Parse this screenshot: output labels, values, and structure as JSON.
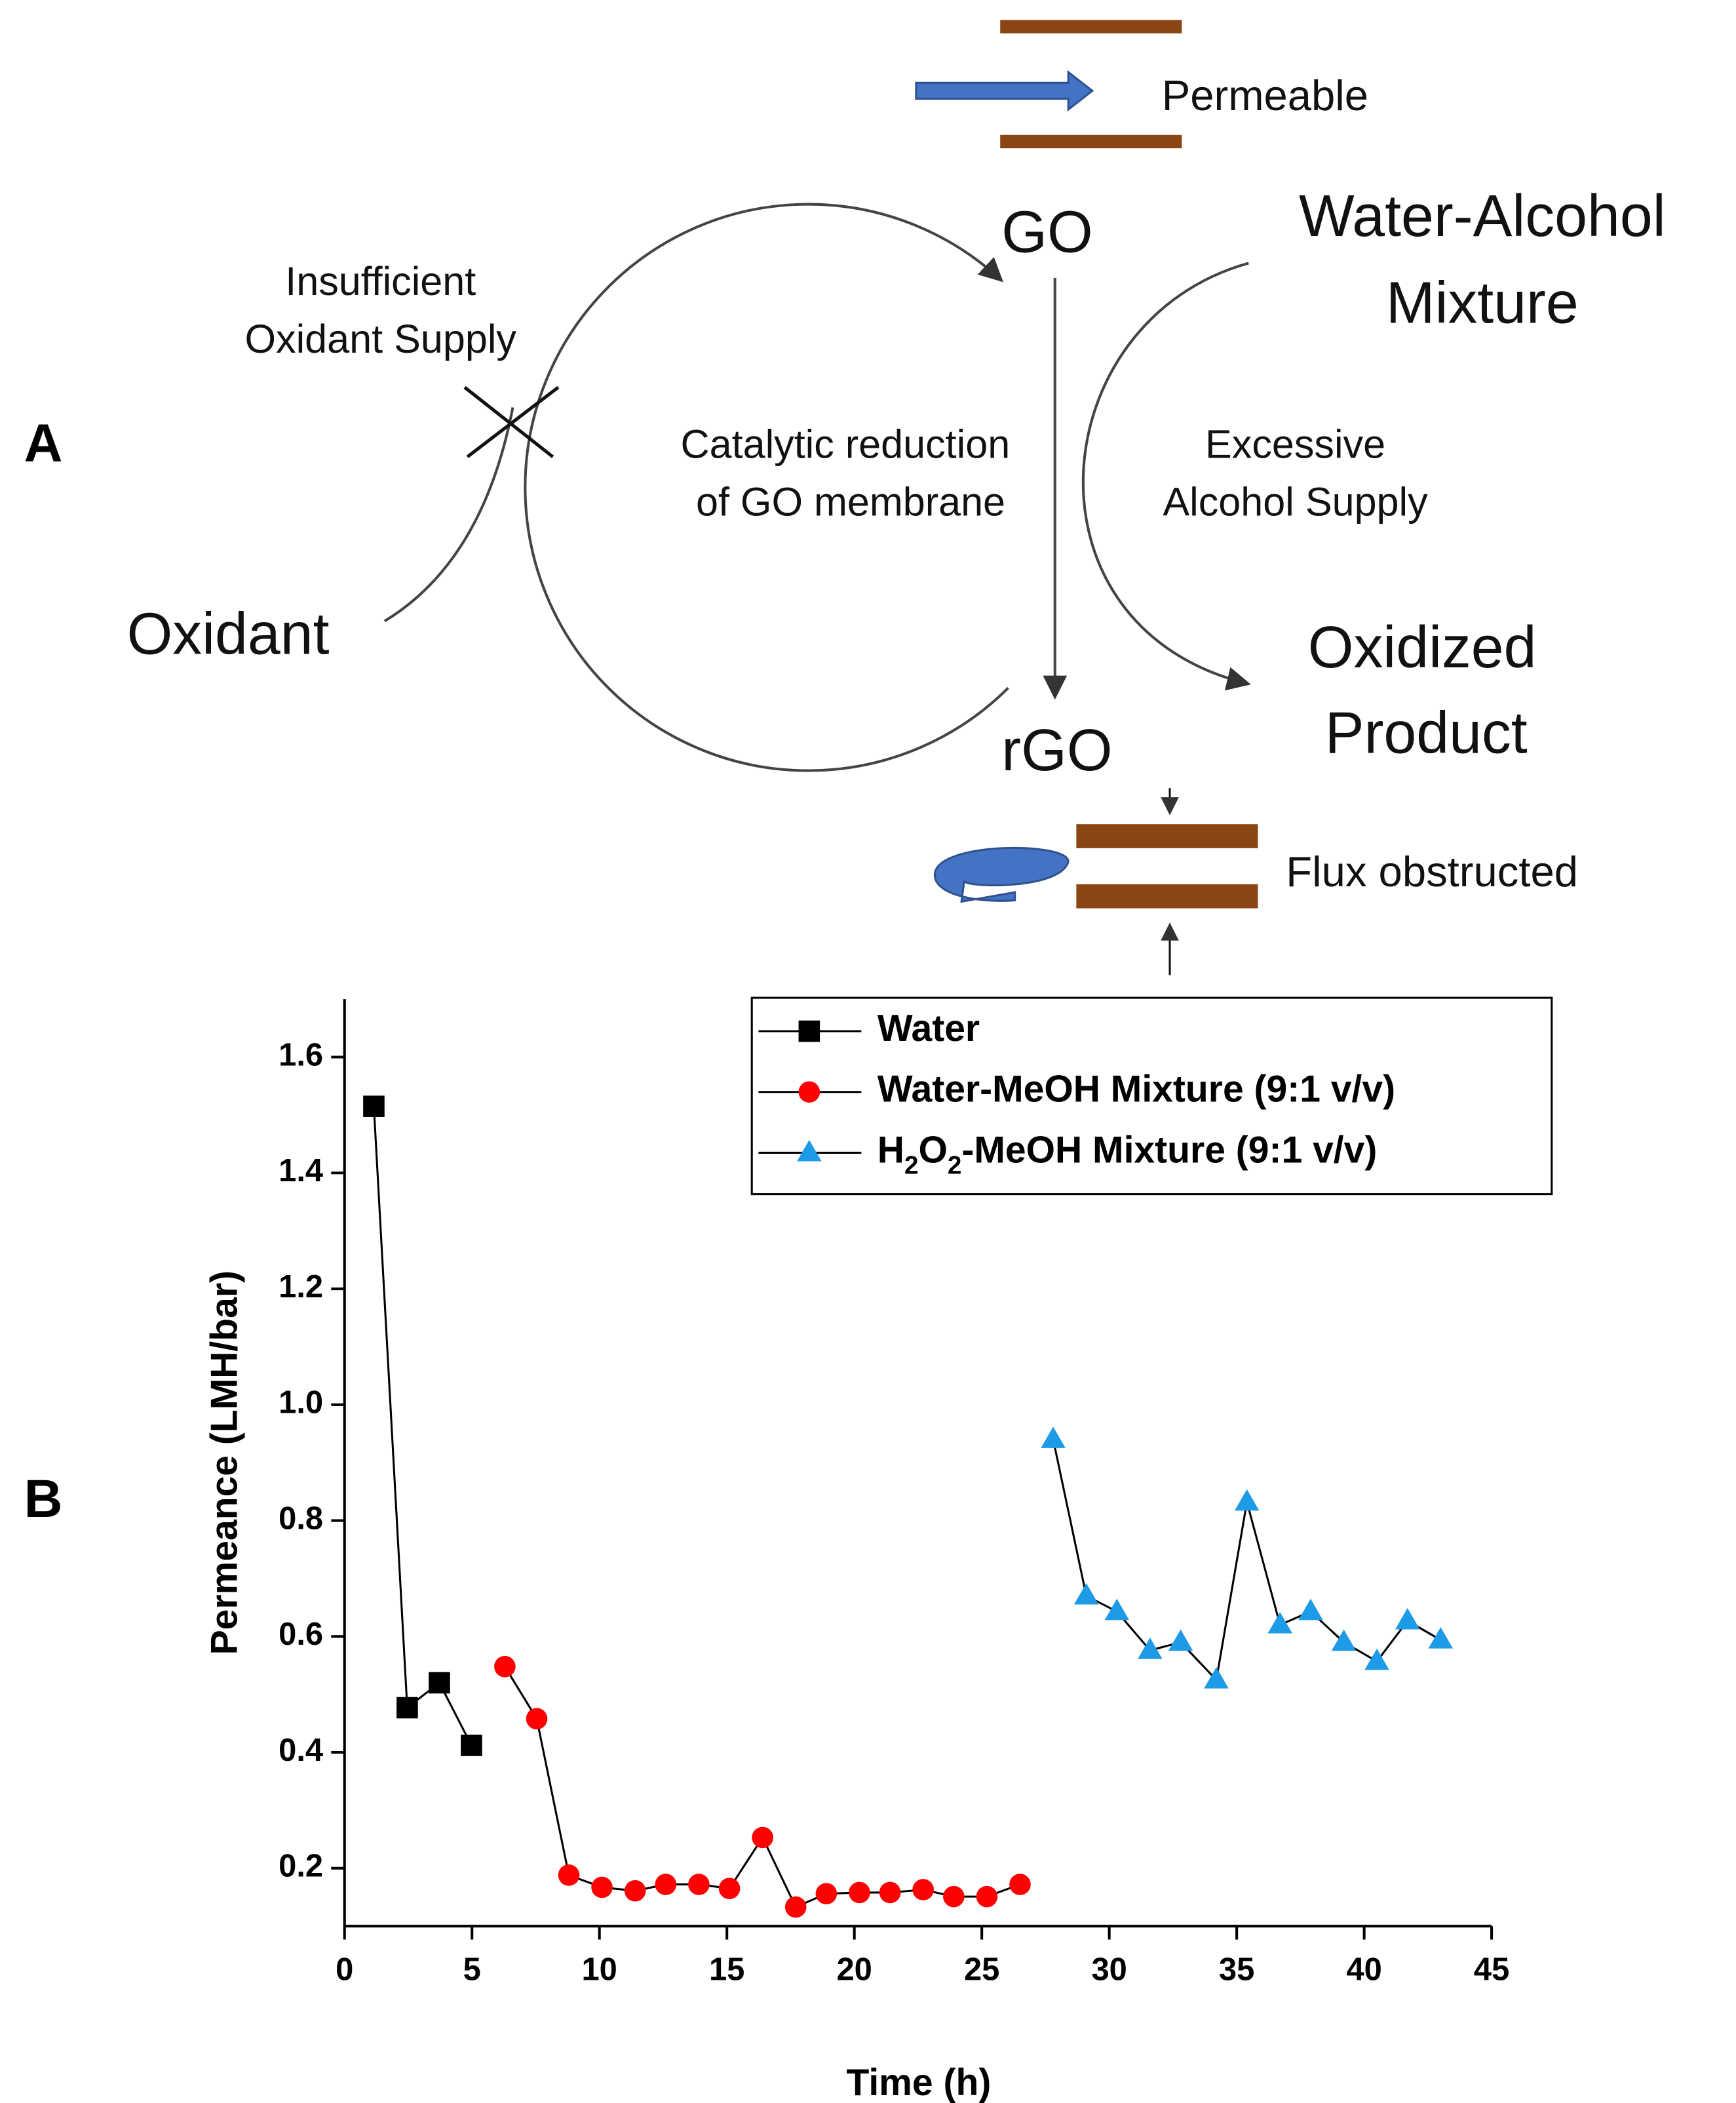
{
  "panel_a": {
    "label": "A",
    "permeable": "Permeable",
    "go": "GO",
    "mixture": [
      "Water-Alcohol",
      "Mixture"
    ],
    "insufficient": [
      "Insufficient",
      "Oxidant Supply"
    ],
    "catalytic": [
      "Catalytic reduction",
      "of GO membrane"
    ],
    "excessive": [
      "Excessive",
      "Alcohol Supply"
    ],
    "oxidant": "Oxidant",
    "product": [
      "Oxidized",
      "Product"
    ],
    "rgo": "rGO",
    "flux": "Flux obstructed"
  },
  "panel_b_label": "B",
  "chart_data": {
    "type": "line",
    "xlabel": "Time (h)",
    "ylabel": "Permeance (LMH/bar)",
    "xlim": [
      0,
      45
    ],
    "xticks": [
      0,
      5,
      10,
      15,
      20,
      25,
      30,
      35,
      40,
      45
    ],
    "ylim": [
      0.1,
      1.7
    ],
    "yticks": [
      0.2,
      0.4,
      0.6,
      0.8,
      {
        "value": 1,
        "label": "1.0"
      },
      1.2,
      1.4,
      1.6
    ],
    "legend": "upper right",
    "series": [
      {
        "name": "Water",
        "color": "#000000",
        "marker": "square",
        "x": [
          1.15,
          2.46,
          3.72,
          4.98
        ],
        "values": [
          1.515,
          0.477,
          0.52,
          0.412
        ]
      },
      {
        "name": "Water-MeOH Mixture (9:1 v/v)",
        "color": "#ff0000",
        "marker": "circle",
        "x": [
          6.29,
          7.54,
          8.8,
          10.1,
          11.4,
          12.6,
          13.9,
          15.1,
          16.4,
          17.7,
          18.9,
          20.2,
          21.4,
          22.7,
          23.9,
          25.2,
          26.5
        ],
        "values": [
          0.548,
          0.458,
          0.188,
          0.167,
          0.161,
          0.172,
          0.172,
          0.165,
          0.253,
          0.133,
          0.156,
          0.158,
          0.158,
          0.163,
          0.151,
          0.151,
          0.172
        ]
      },
      {
        "name": "H2O2-MeOH Mixture (9:1 v/v)",
        "color": "#1e9be6",
        "marker": "triangle",
        "x": [
          27.8,
          29.1,
          30.3,
          31.6,
          32.8,
          34.2,
          35.4,
          36.7,
          37.9,
          39.2,
          40.5,
          41.7,
          43.0
        ],
        "values": [
          0.94,
          0.67,
          0.643,
          0.576,
          0.59,
          0.525,
          0.832,
          0.62,
          0.643,
          0.59,
          0.557,
          0.627,
          0.594
        ]
      }
    ]
  }
}
